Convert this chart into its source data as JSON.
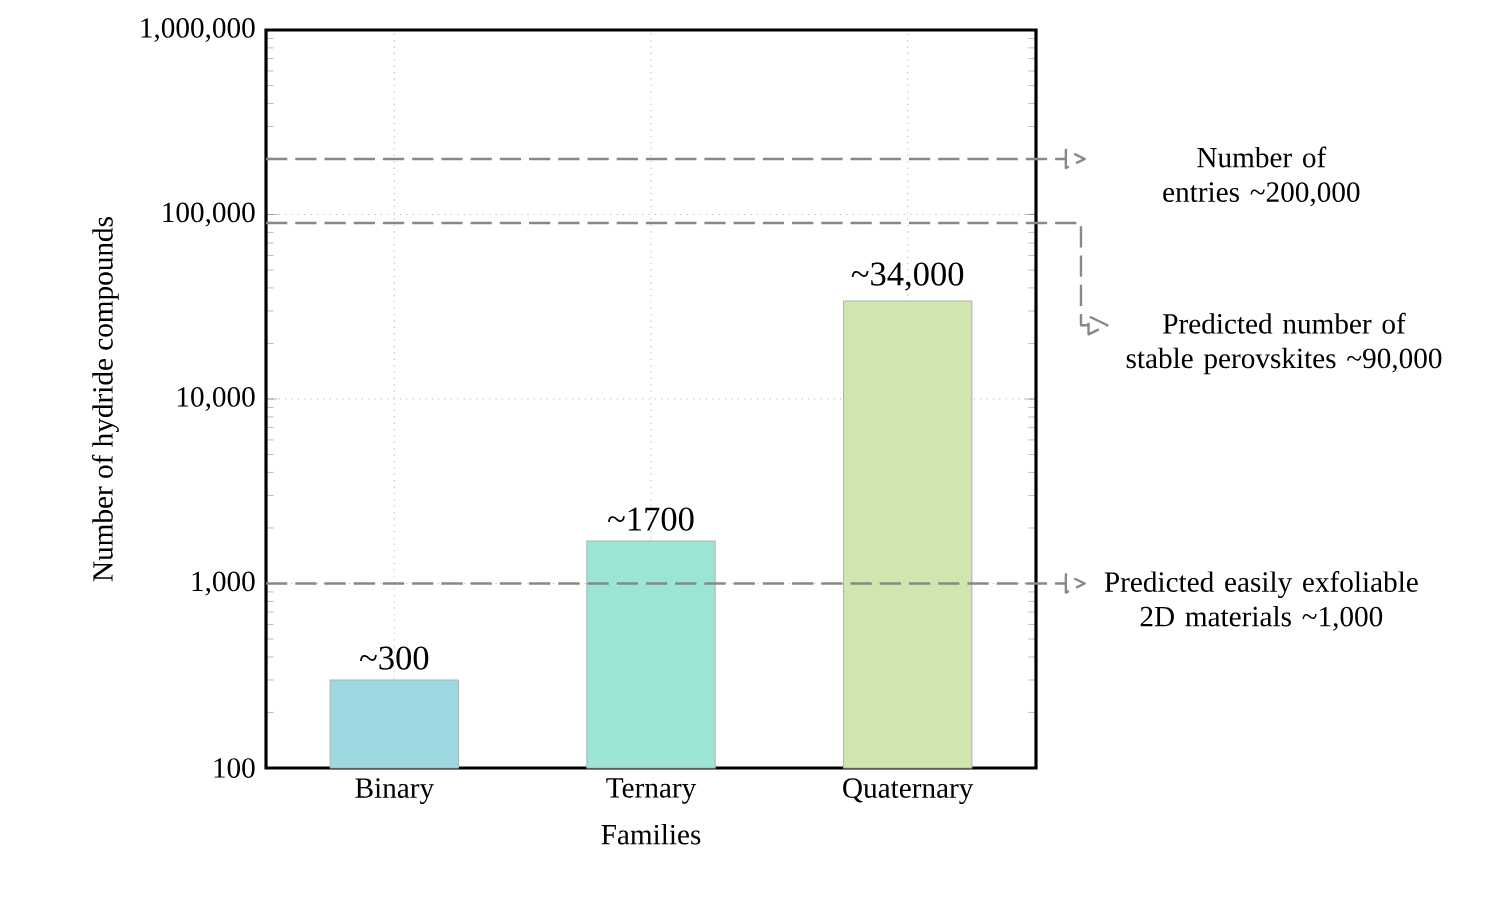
{
  "chart_data": {
    "type": "bar",
    "xlabel": "Families",
    "ylabel": "Number of hydride compounds",
    "categories": [
      "Binary",
      "Ternary",
      "Quaternary"
    ],
    "values": [
      300,
      1700,
      34000
    ],
    "value_labels": [
      "~300",
      "~1700",
      "~34,000"
    ],
    "colors": [
      "#9dd8e0",
      "#9be5d4",
      "#cfe6ae"
    ],
    "log": true,
    "grid": true,
    "ylim": [
      100,
      1000000
    ],
    "yticks": [
      {
        "value": 100,
        "label": "100"
      },
      {
        "value": 1000,
        "label": "1,000"
      },
      {
        "value": 10000,
        "label": "10,000"
      },
      {
        "value": 100000,
        "label": "100,000"
      },
      {
        "value": 1000000,
        "label": "1,000,000"
      }
    ],
    "ref_lines": [
      {
        "axis": "y",
        "value": 200000,
        "label": "Number of entries ~200,000",
        "color": "#888888",
        "line_style": "dashed"
      },
      {
        "axis": "y",
        "value": 90000,
        "label": "Predicted number of stable perovskites ~90,000",
        "color": "#888888",
        "line_style": "dashed"
      },
      {
        "axis": "y",
        "value": 1000,
        "label": "Predicted easily exfoliable 2D materials ~1,000",
        "color": "#888888",
        "line_style": "dashed"
      }
    ]
  }
}
